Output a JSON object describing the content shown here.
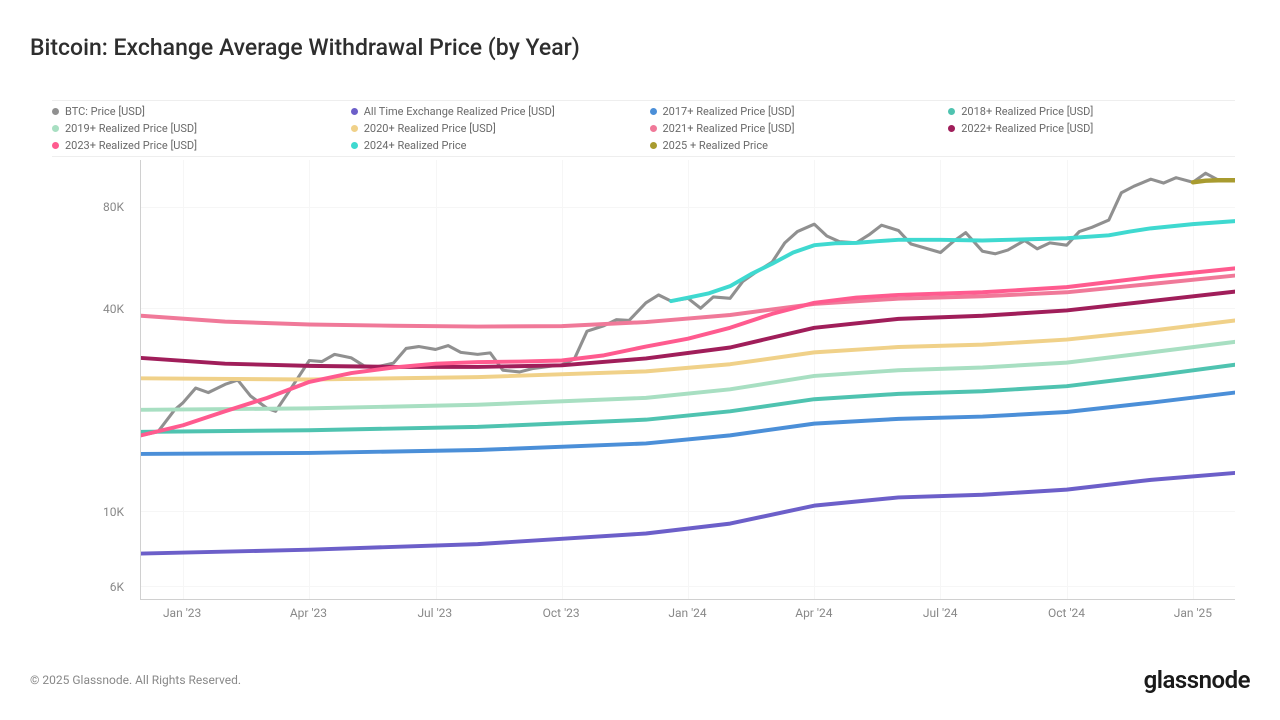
{
  "title": "Bitcoin: Exchange Average Withdrawal Price (by Year)",
  "footer": {
    "copyright": "© 2025 Glassnode. All Rights Reserved.",
    "brand": "glassnode"
  },
  "chart": {
    "type": "line",
    "scale": "log",
    "background_color": "#ffffff",
    "grid_color": "#f6f6f6",
    "axis_color": "#d0d0d0",
    "text_color": "#888888",
    "title_fontsize": 23,
    "label_fontsize": 12,
    "legend_fontsize": 11,
    "line_width_price": 1.4,
    "line_width_series": 1.8,
    "x_range": [
      0,
      26
    ],
    "x_ticks": [
      {
        "pos": 1,
        "label": "Jan '23"
      },
      {
        "pos": 4,
        "label": "Apr '23"
      },
      {
        "pos": 7,
        "label": "Jul '23"
      },
      {
        "pos": 10,
        "label": "Oct '23"
      },
      {
        "pos": 13,
        "label": "Jan '24"
      },
      {
        "pos": 16,
        "label": "Apr '24"
      },
      {
        "pos": 19,
        "label": "Jul '24"
      },
      {
        "pos": 22,
        "label": "Oct '24"
      },
      {
        "pos": 25,
        "label": "Jan '25"
      }
    ],
    "y_ticks": [
      {
        "value": 6000,
        "label": "6K"
      },
      {
        "value": 10000,
        "label": "10K"
      },
      {
        "value": 40000,
        "label": "40K"
      },
      {
        "value": 80000,
        "label": "80K"
      }
    ],
    "y_range_log": [
      5500,
      110000
    ],
    "legend": [
      {
        "label": "BTC: Price [USD]",
        "color": "#909090"
      },
      {
        "label": "All Time Exchange Realized Price [USD]",
        "color": "#6c5fc9"
      },
      {
        "label": "2017+ Realized Price [USD]",
        "color": "#4b8fd8"
      },
      {
        "label": "2018+ Realized Price [USD]",
        "color": "#4fc3b0"
      },
      {
        "label": "2019+ Realized Price [USD]",
        "color": "#a8dfc2"
      },
      {
        "label": "2020+ Realized Price [USD]",
        "color": "#f0d189"
      },
      {
        "label": "2021+ Realized Price [USD]",
        "color": "#f07999"
      },
      {
        "label": "2022+ Realized Price [USD]",
        "color": "#a01e5a"
      },
      {
        "label": "2023+ Realized Price [USD]",
        "color": "#ff5b8f"
      },
      {
        "label": "2024+ Realized Price",
        "color": "#3fd9d0"
      },
      {
        "label": "2025 + Realized Price",
        "color": "#a89b2f"
      }
    ],
    "series": [
      {
        "id": "btc_price",
        "color": "#909090",
        "width": 1.4,
        "noisy": true,
        "points": [
          [
            0,
            16800
          ],
          [
            0.4,
            17200
          ],
          [
            0.8,
            20000
          ],
          [
            1,
            21000
          ],
          [
            1.3,
            23200
          ],
          [
            1.6,
            22500
          ],
          [
            2,
            23800
          ],
          [
            2.3,
            24500
          ],
          [
            2.6,
            22000
          ],
          [
            3,
            20200
          ],
          [
            3.2,
            19800
          ],
          [
            3.5,
            22500
          ],
          [
            4,
            28000
          ],
          [
            4.3,
            27800
          ],
          [
            4.6,
            29200
          ],
          [
            5,
            28500
          ],
          [
            5.3,
            27000
          ],
          [
            5.6,
            26800
          ],
          [
            6,
            27500
          ],
          [
            6.3,
            30400
          ],
          [
            6.6,
            30800
          ],
          [
            7,
            30200
          ],
          [
            7.3,
            31000
          ],
          [
            7.6,
            29600
          ],
          [
            8,
            29200
          ],
          [
            8.3,
            29500
          ],
          [
            8.6,
            26200
          ],
          [
            9,
            25900
          ],
          [
            9.3,
            26500
          ],
          [
            9.6,
            26800
          ],
          [
            10,
            27200
          ],
          [
            10.3,
            28300
          ],
          [
            10.6,
            34200
          ],
          [
            11,
            35500
          ],
          [
            11.3,
            37000
          ],
          [
            11.6,
            36800
          ],
          [
            12,
            41500
          ],
          [
            12.3,
            43800
          ],
          [
            12.6,
            42000
          ],
          [
            13,
            42800
          ],
          [
            13.3,
            40000
          ],
          [
            13.6,
            43200
          ],
          [
            14,
            42800
          ],
          [
            14.3,
            48000
          ],
          [
            14.6,
            51000
          ],
          [
            15,
            54800
          ],
          [
            15.3,
            62500
          ],
          [
            15.6,
            67500
          ],
          [
            16,
            71000
          ],
          [
            16.3,
            65500
          ],
          [
            16.6,
            63000
          ],
          [
            17,
            62500
          ],
          [
            17.3,
            66000
          ],
          [
            17.6,
            70500
          ],
          [
            18,
            68000
          ],
          [
            18.3,
            62000
          ],
          [
            18.6,
            60500
          ],
          [
            19,
            58500
          ],
          [
            19.3,
            63000
          ],
          [
            19.6,
            67000
          ],
          [
            20,
            59000
          ],
          [
            20.3,
            58000
          ],
          [
            20.6,
            59500
          ],
          [
            21,
            63500
          ],
          [
            21.3,
            60000
          ],
          [
            21.6,
            62500
          ],
          [
            22,
            61500
          ],
          [
            22.3,
            67500
          ],
          [
            22.6,
            69500
          ],
          [
            23,
            73000
          ],
          [
            23.3,
            88000
          ],
          [
            23.6,
            92000
          ],
          [
            24,
            96500
          ],
          [
            24.3,
            94000
          ],
          [
            24.6,
            97500
          ],
          [
            25,
            94500
          ],
          [
            25.3,
            100500
          ],
          [
            25.6,
            96000
          ],
          [
            26,
            96000
          ]
        ]
      },
      {
        "id": "all_time",
        "color": "#6c5fc9",
        "width": 1.8,
        "points": [
          [
            0,
            7500
          ],
          [
            4,
            7700
          ],
          [
            8,
            8000
          ],
          [
            12,
            8600
          ],
          [
            14,
            9200
          ],
          [
            16,
            10400
          ],
          [
            18,
            11000
          ],
          [
            20,
            11200
          ],
          [
            22,
            11600
          ],
          [
            24,
            12400
          ],
          [
            26,
            13000
          ]
        ]
      },
      {
        "id": "y2017",
        "color": "#4b8fd8",
        "width": 1.8,
        "points": [
          [
            0,
            14800
          ],
          [
            4,
            14900
          ],
          [
            8,
            15200
          ],
          [
            12,
            15900
          ],
          [
            14,
            16800
          ],
          [
            16,
            18200
          ],
          [
            18,
            18800
          ],
          [
            20,
            19100
          ],
          [
            22,
            19700
          ],
          [
            24,
            21000
          ],
          [
            26,
            22500
          ]
        ]
      },
      {
        "id": "y2018",
        "color": "#4fc3b0",
        "width": 1.8,
        "points": [
          [
            0,
            17200
          ],
          [
            4,
            17400
          ],
          [
            8,
            17800
          ],
          [
            12,
            18700
          ],
          [
            14,
            19800
          ],
          [
            16,
            21500
          ],
          [
            18,
            22300
          ],
          [
            20,
            22700
          ],
          [
            22,
            23500
          ],
          [
            24,
            25200
          ],
          [
            26,
            27200
          ]
        ]
      },
      {
        "id": "y2019",
        "color": "#a8dfc2",
        "width": 1.8,
        "points": [
          [
            0,
            20000
          ],
          [
            4,
            20200
          ],
          [
            8,
            20700
          ],
          [
            12,
            21700
          ],
          [
            14,
            23000
          ],
          [
            16,
            25200
          ],
          [
            18,
            26200
          ],
          [
            20,
            26700
          ],
          [
            22,
            27600
          ],
          [
            24,
            29600
          ],
          [
            26,
            31800
          ]
        ]
      },
      {
        "id": "y2020",
        "color": "#f0d189",
        "width": 1.8,
        "points": [
          [
            0,
            24800
          ],
          [
            4,
            24600
          ],
          [
            8,
            25000
          ],
          [
            12,
            26000
          ],
          [
            14,
            27300
          ],
          [
            16,
            29600
          ],
          [
            18,
            30700
          ],
          [
            20,
            31200
          ],
          [
            22,
            32300
          ],
          [
            24,
            34300
          ],
          [
            26,
            36800
          ]
        ]
      },
      {
        "id": "y2021",
        "color": "#f07999",
        "width": 1.8,
        "points": [
          [
            0,
            38000
          ],
          [
            2,
            36500
          ],
          [
            4,
            35800
          ],
          [
            6,
            35500
          ],
          [
            8,
            35300
          ],
          [
            10,
            35400
          ],
          [
            12,
            36400
          ],
          [
            14,
            38200
          ],
          [
            16,
            41200
          ],
          [
            18,
            42700
          ],
          [
            20,
            43400
          ],
          [
            22,
            44600
          ],
          [
            24,
            47200
          ],
          [
            26,
            50000
          ]
        ]
      },
      {
        "id": "y2022",
        "color": "#a01e5a",
        "width": 1.8,
        "points": [
          [
            0,
            28500
          ],
          [
            2,
            27400
          ],
          [
            4,
            27000
          ],
          [
            6,
            26800
          ],
          [
            8,
            26800
          ],
          [
            10,
            27100
          ],
          [
            12,
            28400
          ],
          [
            14,
            30600
          ],
          [
            16,
            35000
          ],
          [
            18,
            37200
          ],
          [
            20,
            38000
          ],
          [
            22,
            39400
          ],
          [
            24,
            42000
          ],
          [
            26,
            44800
          ]
        ]
      },
      {
        "id": "y2023",
        "color": "#ff5b8f",
        "width": 1.8,
        "points": [
          [
            0,
            16800
          ],
          [
            1,
            18000
          ],
          [
            2,
            19800
          ],
          [
            3,
            21700
          ],
          [
            4,
            24200
          ],
          [
            5,
            25700
          ],
          [
            6,
            26700
          ],
          [
            7,
            27400
          ],
          [
            8,
            27700
          ],
          [
            9,
            27800
          ],
          [
            10,
            28000
          ],
          [
            11,
            29000
          ],
          [
            12,
            30800
          ],
          [
            13,
            32500
          ],
          [
            14,
            35000
          ],
          [
            15,
            38500
          ],
          [
            16,
            41500
          ],
          [
            17,
            43000
          ],
          [
            18,
            43800
          ],
          [
            19,
            44200
          ],
          [
            20,
            44600
          ],
          [
            22,
            46200
          ],
          [
            24,
            49500
          ],
          [
            26,
            52500
          ]
        ]
      },
      {
        "id": "y2024",
        "color": "#3fd9d0",
        "width": 1.8,
        "points": [
          [
            12.6,
            42000
          ],
          [
            13,
            43000
          ],
          [
            13.5,
            44300
          ],
          [
            14,
            46500
          ],
          [
            14.5,
            50500
          ],
          [
            15,
            54200
          ],
          [
            15.5,
            58500
          ],
          [
            16,
            61500
          ],
          [
            16.5,
            62300
          ],
          [
            17,
            62500
          ],
          [
            17.5,
            63200
          ],
          [
            18,
            63800
          ],
          [
            19,
            63800
          ],
          [
            20,
            63500
          ],
          [
            21,
            64000
          ],
          [
            22,
            64500
          ],
          [
            23,
            65800
          ],
          [
            23.5,
            67500
          ],
          [
            24,
            69000
          ],
          [
            25,
            71000
          ],
          [
            26,
            72500
          ]
        ]
      },
      {
        "id": "y2025",
        "color": "#a89b2f",
        "width": 2.0,
        "points": [
          [
            25,
            94500
          ],
          [
            25.3,
            95500
          ],
          [
            25.6,
            95800
          ],
          [
            26,
            95800
          ]
        ]
      }
    ]
  }
}
